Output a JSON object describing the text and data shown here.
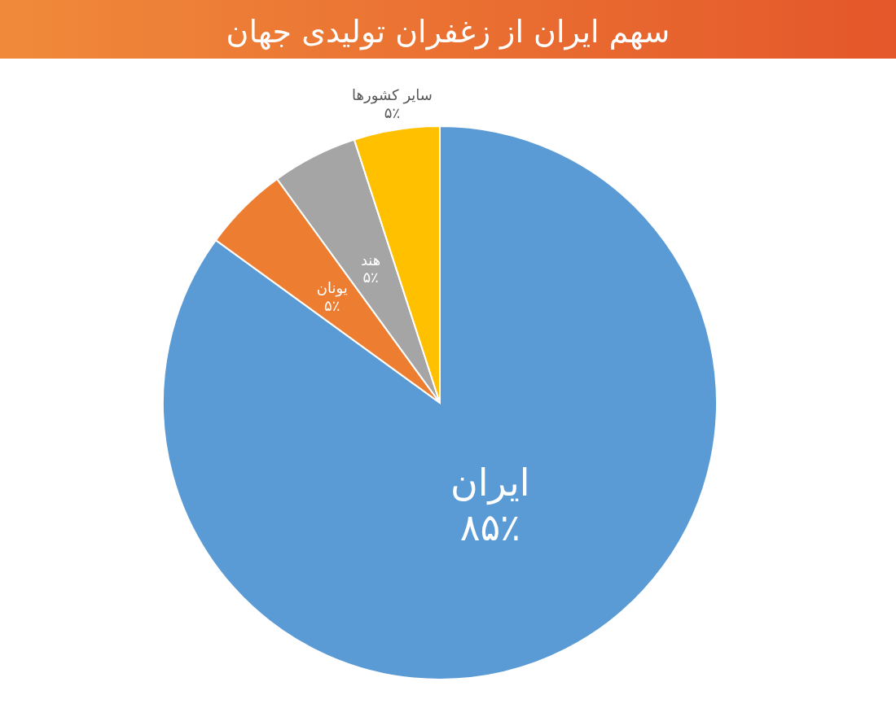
{
  "chart_data": {
    "type": "pie",
    "title": "سهم ایران از زغفران تولیدی جهان",
    "categories": [
      "ایران",
      "یونان",
      "هند",
      "سایر کشورها"
    ],
    "values": [
      85,
      5,
      5,
      5
    ],
    "colors": [
      "#5b9bd5",
      "#ed7d31",
      "#a5a5a5",
      "#ffc000"
    ],
    "value_labels": [
      "۸۵٪",
      "۵٪",
      "۵٪",
      "۵٪"
    ],
    "legend": false
  }
}
